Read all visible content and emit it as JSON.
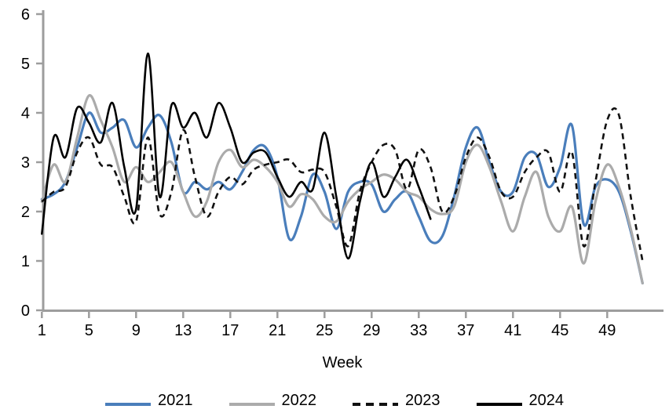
{
  "chart_data": {
    "type": "line",
    "title": "",
    "xlabel": "Week",
    "ylabel": "",
    "ylim": [
      0,
      6
    ],
    "xlim": [
      1,
      52
    ],
    "yticks": [
      0,
      1,
      2,
      3,
      4,
      5,
      6
    ],
    "xticks": [
      1,
      5,
      9,
      13,
      17,
      21,
      25,
      29,
      33,
      37,
      41,
      45,
      49
    ],
    "grid": "off",
    "legend_position": "bottom",
    "axis_color": "#9d9d9d",
    "text_color": "#000000",
    "smoothed": true,
    "series": [
      {
        "name": "2021",
        "color": "#4a7ebb",
        "style": "solid",
        "width": 3.2,
        "start_week": 1,
        "values": [
          2.25,
          2.35,
          2.6,
          3.3,
          4.0,
          3.6,
          3.7,
          3.85,
          3.3,
          3.7,
          3.95,
          3.4,
          2.4,
          2.6,
          2.45,
          2.6,
          2.45,
          2.8,
          3.25,
          3.3,
          2.7,
          1.45,
          1.9,
          2.75,
          2.4,
          1.65,
          2.4,
          2.6,
          2.55,
          2.0,
          2.25,
          2.4,
          1.9,
          1.4,
          1.5,
          2.3,
          3.3,
          3.7,
          3.0,
          2.4,
          2.4,
          3.1,
          3.15,
          2.5,
          2.9,
          3.75,
          1.75,
          2.5,
          2.65,
          2.4,
          1.6,
          0.55
        ]
      },
      {
        "name": "2022",
        "color": "#ababab",
        "style": "solid",
        "width": 3.2,
        "start_week": 1,
        "values": [
          2.2,
          2.95,
          2.6,
          3.5,
          4.35,
          3.85,
          3.3,
          2.6,
          2.9,
          2.6,
          2.8,
          3.0,
          2.4,
          1.9,
          2.2,
          3.0,
          3.25,
          2.9,
          3.05,
          2.9,
          2.6,
          2.1,
          2.35,
          2.25,
          1.9,
          1.8,
          2.2,
          2.45,
          2.6,
          2.75,
          2.65,
          2.4,
          2.3,
          2.05,
          1.95,
          2.1,
          3.0,
          3.35,
          2.9,
          2.2,
          1.6,
          2.3,
          2.8,
          1.9,
          1.6,
          2.1,
          0.95,
          2.2,
          2.95,
          2.5,
          1.65,
          0.55
        ]
      },
      {
        "name": "2023",
        "color": "#111111",
        "style": "dashed",
        "width": 2.6,
        "start_week": 1,
        "values": [
          2.2,
          2.4,
          2.5,
          3.2,
          3.5,
          2.95,
          2.9,
          2.3,
          1.8,
          3.5,
          1.95,
          2.4,
          3.65,
          2.7,
          1.9,
          2.4,
          2.7,
          2.55,
          2.85,
          2.95,
          3.0,
          3.05,
          2.8,
          2.85,
          2.8,
          2.1,
          1.3,
          2.4,
          3.0,
          3.35,
          3.25,
          2.45,
          3.25,
          2.9,
          2.0,
          2.3,
          3.1,
          3.5,
          3.1,
          2.4,
          2.3,
          2.8,
          3.1,
          3.2,
          2.4,
          3.2,
          1.3,
          2.6,
          3.85,
          3.95,
          2.3,
          1.0
        ]
      },
      {
        "name": "2024",
        "color": "#000000",
        "style": "solid",
        "width": 2.6,
        "start_week": 1,
        "values": [
          1.55,
          3.5,
          3.1,
          4.1,
          3.8,
          3.4,
          4.2,
          2.9,
          2.05,
          5.2,
          2.3,
          4.15,
          3.7,
          4.0,
          3.5,
          4.2,
          3.7,
          3.0,
          3.2,
          3.2,
          2.7,
          2.3,
          2.6,
          2.45,
          3.6,
          2.3,
          1.05,
          2.2,
          3.0,
          2.3,
          2.7,
          3.05,
          2.5,
          1.85
        ]
      }
    ]
  }
}
